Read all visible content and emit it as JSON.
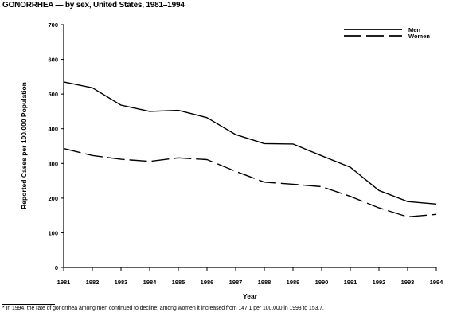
{
  "chart_data": {
    "type": "line",
    "title": "GONORRHEA — by sex, United States, 1981–1994",
    "xlabel": "Year",
    "ylabel": "Reported Cases per 100,000 Population",
    "x": [
      "1981",
      "1982",
      "1983",
      "1984",
      "1985",
      "1986",
      "1987",
      "1988",
      "1989",
      "1990",
      "1991",
      "1992",
      "1993",
      "1994"
    ],
    "ylim": [
      0,
      700
    ],
    "yticks": [
      "0",
      "100",
      "200",
      "300",
      "400",
      "500",
      "600",
      "700"
    ],
    "grid": false,
    "legend_position": "top-right",
    "series": [
      {
        "name": "Men",
        "style": "solid",
        "values": [
          535,
          518,
          468,
          450,
          453,
          432,
          383,
          357,
          356,
          322,
          289,
          222,
          190,
          183
        ]
      },
      {
        "name": "Women",
        "style": "dashed",
        "values": [
          343,
          323,
          312,
          306,
          316,
          311,
          277,
          246,
          240,
          233,
          205,
          172,
          146,
          153
        ]
      }
    ],
    "footnote": "* In 1994, the rate of gonorrhea among men continued to decline; among women it increased from 147.1 per 100,000 in 1993 to 153.7."
  }
}
